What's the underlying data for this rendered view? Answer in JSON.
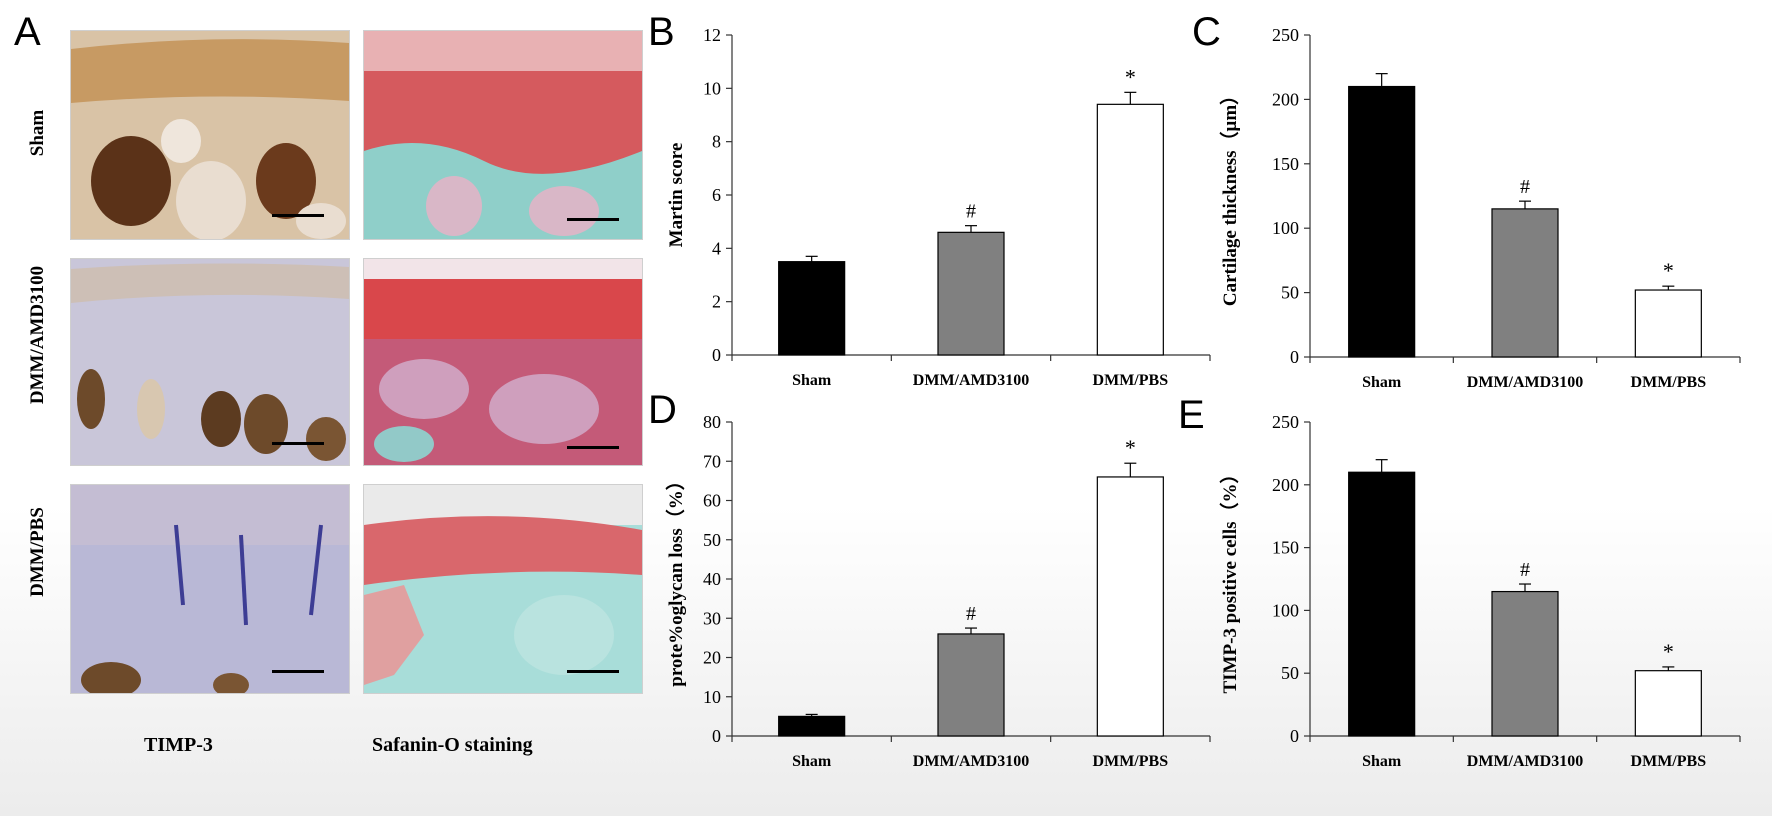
{
  "panel_A": {
    "letter": "A",
    "row_labels": [
      "Sham",
      "DMM/AMD3100",
      "DMM/PBS"
    ],
    "col_labels": [
      "TIMP-3",
      "Safanin-O staining"
    ]
  },
  "colors": {
    "sham": "#000000",
    "dmm_amd3100": "#808080",
    "dmm_pbs": "#ffffff"
  },
  "chart_data": [
    {
      "panel": "B",
      "type": "bar",
      "categories": [
        "Sham",
        "DMM/AMD3100",
        "DMM/PBS"
      ],
      "values": [
        3.5,
        4.6,
        9.4
      ],
      "errors": [
        0.2,
        0.25,
        0.45
      ],
      "annotations": [
        "",
        "#",
        "*"
      ],
      "ylabel": "Martin score",
      "ylim": [
        0,
        12
      ],
      "yticks": [
        0,
        2,
        4,
        6,
        8,
        10,
        12
      ]
    },
    {
      "panel": "C",
      "type": "bar",
      "categories": [
        "Sham",
        "DMM/AMD3100",
        "DMM/PBS"
      ],
      "values": [
        210,
        115,
        52
      ],
      "errors": [
        10,
        6,
        3
      ],
      "annotations": [
        "",
        "#",
        "*"
      ],
      "ylabel": "Cartilage thickness（μm）",
      "ylim": [
        0,
        250
      ],
      "yticks": [
        0,
        50,
        100,
        150,
        200,
        250
      ]
    },
    {
      "panel": "D",
      "type": "bar",
      "categories": [
        "Sham",
        "DMM/AMD3100",
        "DMM/PBS"
      ],
      "values": [
        5,
        26,
        66
      ],
      "errors": [
        0.5,
        1.5,
        3.5
      ],
      "annotations": [
        "",
        "#",
        "*"
      ],
      "ylabel": "prote%oglycan loss（%）",
      "ylim": [
        0,
        80
      ],
      "yticks": [
        0,
        10,
        20,
        30,
        40,
        50,
        60,
        70,
        80
      ]
    },
    {
      "panel": "E",
      "type": "bar",
      "categories": [
        "Sham",
        "DMM/AMD3100",
        "DMM/PBS"
      ],
      "values": [
        210,
        115,
        52
      ],
      "errors": [
        10,
        6,
        3
      ],
      "annotations": [
        "",
        "#",
        "*"
      ],
      "ylabel": "TIMP-3 positive cells（%）",
      "ylim": [
        0,
        250
      ],
      "yticks": [
        0,
        50,
        100,
        150,
        200,
        250
      ]
    }
  ]
}
